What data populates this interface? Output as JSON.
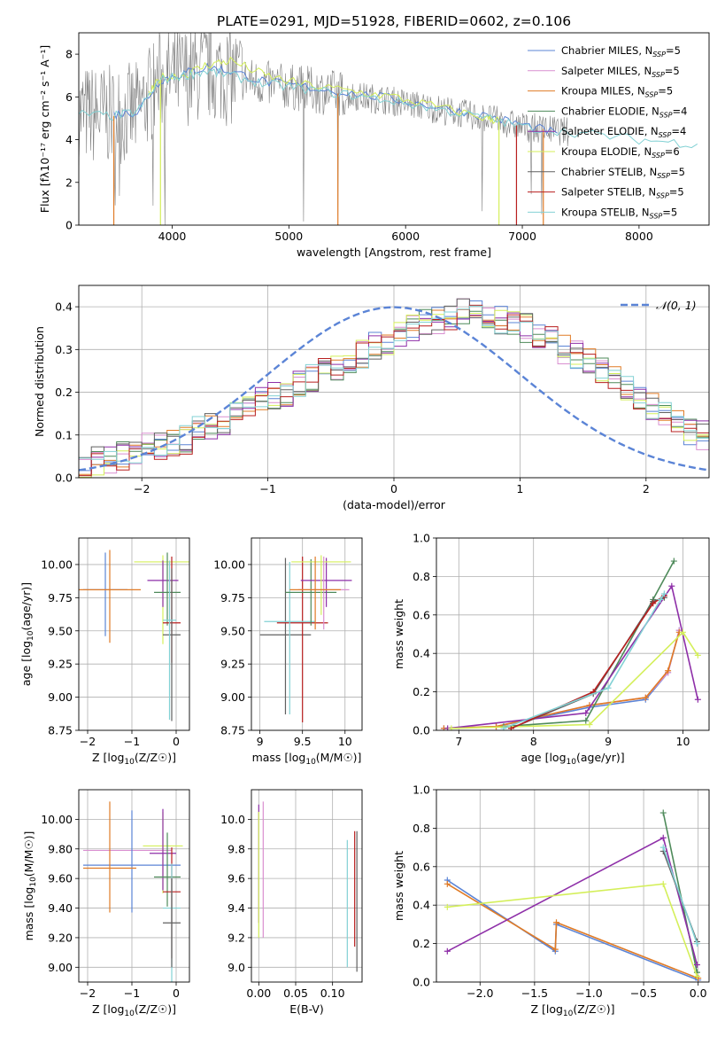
{
  "page_title": "PLATE=0291, MJD=51928, FIBERID=0602, z=0.106",
  "colors": {
    "Chabrier MILES": "#5b84d6",
    "Salpeter MILES": "#d98fd0",
    "Kroupa MILES": "#e07b26",
    "Chabrier ELODIE": "#4e8a5a",
    "Salpeter ELODIE": "#8e2fa8",
    "Kroupa ELODIE": "#d4ef5a",
    "Chabrier STELIB": "#606060",
    "Salpeter STELIB": "#b81f1f",
    "Kroupa STELIB": "#82d1d4",
    "noise": "#808080",
    "gaussian": "#5b84d6"
  },
  "chart_data": [
    {
      "id": "spectrum",
      "type": "line",
      "title": "PLATE=0291, MJD=51928, FIBERID=0602, z=0.106",
      "xlabel": "wavelength [Angstrom, rest frame]",
      "ylabel": "Flux [fλ10⁻¹⁷ erg cm⁻² s⁻¹ A⁻¹]",
      "xlim": [
        3200,
        8600
      ],
      "ylim": [
        0,
        9
      ],
      "xticks": [
        4000,
        5000,
        6000,
        7000,
        8000
      ],
      "yticks": [
        0,
        2,
        4,
        6,
        8
      ],
      "grid": false,
      "legend_position": "top-right",
      "legend": [
        {
          "prefix": "Chabrier MILES, N",
          "sub": "SSP",
          "suffix": "=5"
        },
        {
          "prefix": "Salpeter MILES, N",
          "sub": "SSP",
          "suffix": "=5"
        },
        {
          "prefix": "Kroupa MILES, N",
          "sub": "SSP",
          "suffix": "=5"
        },
        {
          "prefix": "Chabrier ELODIE, N",
          "sub": "SSP",
          "suffix": "=4"
        },
        {
          "prefix": "Salpeter ELODIE, N",
          "sub": "SSP",
          "suffix": "=4"
        },
        {
          "prefix": "Kroupa ELODIE, N",
          "sub": "SSP",
          "suffix": "=6"
        },
        {
          "prefix": "Chabrier STELIB, N",
          "sub": "SSP",
          "suffix": "=5"
        },
        {
          "prefix": "Salpeter STELIB, N",
          "sub": "SSP",
          "suffix": "=5"
        },
        {
          "prefix": "Kroupa STELIB, N",
          "sub": "SSP",
          "suffix": "=5"
        }
      ],
      "series": [
        {
          "name": "Chabrier MILES",
          "x": [
            3500,
            3700,
            3900,
            4100,
            4300,
            4500,
            4800,
            5100,
            5500,
            5900,
            6300,
            6700,
            7000,
            7300
          ],
          "y": [
            5.2,
            5.3,
            6.8,
            7.1,
            7.4,
            7.2,
            6.7,
            6.5,
            6.2,
            5.9,
            5.5,
            5.1,
            4.7,
            4.3
          ]
        },
        {
          "name": "Kroupa ELODIE",
          "x": [
            3800,
            3900,
            4100,
            4300,
            4500,
            4800,
            5100,
            5500,
            5900,
            6300,
            6700,
            6800
          ],
          "y": [
            6.1,
            6.9,
            7.0,
            7.5,
            7.7,
            7.0,
            6.6,
            6.3,
            6.0,
            5.5,
            5.0,
            4.9
          ]
        },
        {
          "name": "Kroupa STELIB",
          "x": [
            3200,
            3500,
            3700,
            3900,
            4100,
            4300,
            4500,
            4800,
            5100,
            5500,
            5900,
            6300,
            6700,
            7000,
            7500,
            8000,
            8500
          ],
          "y": [
            5.2,
            5.1,
            5.3,
            6.8,
            7.0,
            7.2,
            7.0,
            6.6,
            6.4,
            6.1,
            5.8,
            5.4,
            5.0,
            4.6,
            4.3,
            4.0,
            3.8
          ]
        }
      ],
      "dropouts": [
        {
          "name": "Kroupa MILES",
          "x": [
            3500,
            5420,
            7180
          ]
        },
        {
          "name": "Kroupa ELODIE",
          "x": [
            3900,
            6800
          ]
        },
        {
          "name": "Salpeter STELIB",
          "x": [
            6950
          ]
        }
      ]
    },
    {
      "id": "residuals",
      "type": "histogram",
      "xlabel": "(data-model)/error",
      "ylabel": "Normed distribution",
      "xlim": [
        -2.5,
        2.5
      ],
      "ylim": [
        0,
        0.45
      ],
      "xticks": [
        -2,
        -1,
        0,
        1,
        2
      ],
      "yticks": [
        0.0,
        0.1,
        0.2,
        0.3,
        0.4
      ],
      "grid": true,
      "legend_position": "top-right",
      "bin_width": 0.1,
      "gaussian": {
        "label": "𝒩(0, 1)",
        "mean": 0,
        "sigma": 1
      },
      "reference_bins": [
        0.03,
        0.04,
        0.04,
        0.05,
        0.05,
        0.07,
        0.07,
        0.08,
        0.09,
        0.11,
        0.12,
        0.13,
        0.15,
        0.16,
        0.18,
        0.19,
        0.2,
        0.22,
        0.23,
        0.25,
        0.26,
        0.28,
        0.29,
        0.31,
        0.32,
        0.34,
        0.35,
        0.36,
        0.37,
        0.38,
        0.39,
        0.39,
        0.38,
        0.37,
        0.36,
        0.35,
        0.33,
        0.32,
        0.3,
        0.29,
        0.27,
        0.25,
        0.23,
        0.21,
        0.19,
        0.17,
        0.15,
        0.13,
        0.11,
        0.1
      ],
      "series": [
        "Chabrier MILES",
        "Salpeter MILES",
        "Kroupa MILES",
        "Chabrier ELODIE",
        "Salpeter ELODIE",
        "Kroupa ELODIE",
        "Chabrier STELIB",
        "Salpeter STELIB",
        "Kroupa STELIB"
      ]
    },
    {
      "id": "age-vs-Z",
      "type": "errorbar",
      "xlabel_main": "Z [log",
      "xlabel_sub": "10",
      "xlabel_rest": "(Z/Z☉)]",
      "ylabel_main": "age  [log",
      "ylabel_sub": "10",
      "ylabel_rest": "(age/yr)]",
      "xlim": [
        -2.2,
        0.3
      ],
      "ylim": [
        8.75,
        10.2
      ],
      "xticks": [
        -2,
        -1,
        0
      ],
      "yticks": [
        8.75,
        9.0,
        9.25,
        9.5,
        9.75,
        10.0
      ],
      "grid": true,
      "points": [
        {
          "name": "Chabrier MILES",
          "x": -1.6,
          "xerr": 0.5,
          "y": 9.81,
          "yerr": [
            0.35,
            0.28
          ]
        },
        {
          "name": "Kroupa MILES",
          "x": -1.5,
          "xerr": 0.7,
          "y": 9.81,
          "yerr": [
            0.4,
            0.3
          ]
        },
        {
          "name": "Kroupa ELODIE",
          "x": -0.3,
          "xerr": 0.65,
          "y": 10.02,
          "yerr": [
            0.62,
            0.05
          ]
        },
        {
          "name": "Salpeter ELODIE",
          "x": -0.3,
          "xerr": 0.35,
          "y": 9.88,
          "yerr": [
            0.2,
            0.15
          ]
        },
        {
          "name": "Chabrier ELODIE",
          "x": -0.2,
          "xerr": 0.3,
          "y": 9.79,
          "yerr": [
            0.25,
            0.3
          ]
        },
        {
          "name": "Salpeter STELIB",
          "x": -0.1,
          "xerr": 0.2,
          "y": 9.56,
          "yerr": [
            0.3,
            0.5
          ]
        },
        {
          "name": "Chabrier STELIB",
          "x": -0.1,
          "xerr": 0.2,
          "y": 9.47,
          "yerr": [
            0.65,
            0.5
          ]
        },
        {
          "name": "Kroupa STELIB",
          "x": -0.15,
          "xerr": 0.15,
          "y": 9.58,
          "yerr": [
            0.75,
            0.45
          ]
        }
      ]
    },
    {
      "id": "age-vs-mass",
      "type": "errorbar",
      "xlabel_main": "mass [log",
      "xlabel_sub": "10",
      "xlabel_rest": "(M/M☉)]",
      "xlim": [
        8.9,
        10.2
      ],
      "ylim": [
        8.75,
        10.2
      ],
      "xticks": [
        9.0,
        9.5,
        10.0
      ],
      "yticks": [
        8.75,
        9.0,
        9.25,
        9.5,
        9.75,
        10.0
      ],
      "grid": true,
      "points": [
        {
          "name": "Chabrier STELIB",
          "x": 9.3,
          "xerr": 0.3,
          "y": 9.47,
          "yerr": [
            0.6,
            0.58
          ]
        },
        {
          "name": "Salpeter STELIB",
          "x": 9.5,
          "xerr": 0.3,
          "y": 9.56,
          "yerr": [
            0.75,
            0.5
          ]
        },
        {
          "name": "Kroupa STELIB",
          "x": 9.35,
          "xerr": 0.3,
          "y": 9.57,
          "yerr": [
            0.7,
            0.45
          ]
        },
        {
          "name": "Chabrier ELODIE",
          "x": 9.6,
          "xerr": 0.3,
          "y": 9.79,
          "yerr": [
            0.25,
            0.25
          ]
        },
        {
          "name": "Salpeter ELODIE",
          "x": 9.78,
          "xerr": 0.3,
          "y": 9.88,
          "yerr": [
            0.2,
            0.17
          ]
        },
        {
          "name": "Kroupa ELODIE",
          "x": 9.72,
          "xerr": 0.35,
          "y": 10.02,
          "yerr": [
            0.4,
            0.05
          ]
        },
        {
          "name": "Salpeter MILES",
          "x": 9.75,
          "xerr": 0.3,
          "y": 9.81,
          "yerr": [
            0.3,
            0.25
          ]
        },
        {
          "name": "Kroupa MILES",
          "x": 9.65,
          "xerr": 0.3,
          "y": 9.81,
          "yerr": [
            0.3,
            0.25
          ]
        }
      ]
    },
    {
      "id": "weight-vs-age",
      "type": "line",
      "xlabel_main": "age  [log",
      "xlabel_sub": "10",
      "xlabel_rest": "(age/yr)]",
      "ylabel": "mass weight",
      "xlim": [
        6.7,
        10.35
      ],
      "ylim": [
        0,
        1.0
      ],
      "xticks": [
        7,
        8,
        9,
        10
      ],
      "yticks": [
        0.0,
        0.2,
        0.4,
        0.6,
        0.8,
        1.0
      ],
      "grid": true,
      "series": [
        {
          "name": "Chabrier MILES",
          "x": [
            6.8,
            7.5,
            8.75,
            9.5,
            9.8,
            9.95
          ],
          "y": [
            0.01,
            0.02,
            0.12,
            0.16,
            0.3,
            0.52
          ]
        },
        {
          "name": "Salpeter MILES",
          "x": [
            6.8,
            7.5,
            8.75,
            9.5,
            9.8,
            9.95
          ],
          "y": [
            0.01,
            0.02,
            0.13,
            0.17,
            0.3,
            0.52
          ]
        },
        {
          "name": "Kroupa MILES",
          "x": [
            6.8,
            7.5,
            8.75,
            9.5,
            9.8,
            9.95
          ],
          "y": [
            0.01,
            0.02,
            0.13,
            0.17,
            0.31,
            0.51
          ]
        },
        {
          "name": "Chabrier ELODIE",
          "x": [
            7.6,
            8.7,
            9.6,
            9.88
          ],
          "y": [
            0.02,
            0.05,
            0.68,
            0.88
          ]
        },
        {
          "name": "Salpeter ELODIE",
          "x": [
            6.85,
            8.7,
            9.85,
            10.2
          ],
          "y": [
            0.01,
            0.09,
            0.75,
            0.16
          ]
        },
        {
          "name": "Kroupa ELODIE",
          "x": [
            6.9,
            8.75,
            10.0,
            10.2
          ],
          "y": [
            0.01,
            0.03,
            0.51,
            0.39
          ]
        },
        {
          "name": "Chabrier STELIB",
          "x": [
            7.7,
            8.8,
            9.6,
            9.75
          ],
          "y": [
            0.01,
            0.19,
            0.67,
            0.69
          ]
        },
        {
          "name": "Salpeter STELIB",
          "x": [
            7.7,
            8.8,
            9.6,
            9.75
          ],
          "y": [
            0.01,
            0.2,
            0.66,
            0.7
          ]
        },
        {
          "name": "Kroupa STELIB",
          "x": [
            7.6,
            9.0,
            9.7,
            9.75
          ],
          "y": [
            0.01,
            0.22,
            0.68,
            0.71
          ]
        }
      ]
    },
    {
      "id": "mass-vs-Z",
      "type": "errorbar",
      "xlabel_main": "Z [log",
      "xlabel_sub": "10",
      "xlabel_rest": "(Z/Z☉)]",
      "ylabel_main": "mass [log",
      "ylabel_sub": "10",
      "ylabel_rest": "(M/M☉)]",
      "xlim": [
        -2.2,
        0.3
      ],
      "ylim": [
        8.9,
        10.2
      ],
      "xticks": [
        -2,
        -1,
        0
      ],
      "yticks": [
        9.0,
        9.2,
        9.4,
        9.6,
        9.8,
        10.0
      ],
      "grid": true,
      "points": [
        {
          "name": "Salpeter MILES",
          "x": -1.1,
          "xerr": 1.0,
          "y": 9.79,
          "yerr": [
            0.0,
            0.0
          ]
        },
        {
          "name": "Chabrier MILES",
          "x": -1.0,
          "xerr": 1.1,
          "y": 9.69,
          "yerr": [
            0.32,
            0.37
          ]
        },
        {
          "name": "Kroupa MILES",
          "x": -1.5,
          "xerr": 0.6,
          "y": 9.67,
          "yerr": [
            0.3,
            0.45
          ]
        },
        {
          "name": "Kroupa ELODIE",
          "x": -0.3,
          "xerr": 0.45,
          "y": 9.82,
          "yerr": [
            0.32,
            0.23
          ]
        },
        {
          "name": "Salpeter ELODIE",
          "x": -0.3,
          "xerr": 0.3,
          "y": 9.77,
          "yerr": [
            0.25,
            0.3
          ]
        },
        {
          "name": "Chabrier ELODIE",
          "x": -0.2,
          "xerr": 0.3,
          "y": 9.61,
          "yerr": [
            0.2,
            0.3
          ]
        },
        {
          "name": "Salpeter STELIB",
          "x": -0.1,
          "xerr": 0.2,
          "y": 9.51,
          "yerr": [
            0.45,
            0.3
          ]
        },
        {
          "name": "Kroupa STELIB",
          "x": -0.1,
          "xerr": 0.2,
          "y": 9.4,
          "yerr": [
            0.5,
            0.3
          ]
        },
        {
          "name": "Chabrier STELIB",
          "x": -0.1,
          "xerr": 0.2,
          "y": 9.3,
          "yerr": [
            0.3,
            0.3
          ]
        }
      ]
    },
    {
      "id": "mass-vs-EBV",
      "type": "errorbar",
      "xlabel": "E(B-V)",
      "xlim": [
        -0.01,
        0.14
      ],
      "ylim": [
        8.9,
        10.2
      ],
      "xticks": [
        0.0,
        0.05,
        0.1
      ],
      "ytick_labels": [
        "9.0",
        "9.2",
        "9.4",
        "9.6",
        "9.8",
        "10.0"
      ],
      "yticks": [
        9.0,
        9.2,
        9.4,
        9.6,
        9.8,
        10.0
      ],
      "xtick_labels": [
        "0.00",
        "0.05",
        "0.10"
      ],
      "grid": true,
      "points": [
        {
          "name": "Salpeter ELODIE",
          "x": 0.0,
          "y": 9.7,
          "yerr": [
            0.4,
            0.4
          ]
        },
        {
          "name": "Kroupa ELODIE",
          "x": 0.0,
          "y": 9.6,
          "yerr": [
            0.4,
            0.45
          ]
        },
        {
          "name": "Salpeter MILES",
          "x": 0.006,
          "y": 9.7,
          "yerr": [
            0.5,
            0.42
          ]
        },
        {
          "name": "Kroupa STELIB",
          "x": 0.12,
          "y": 9.4,
          "yerr": [
            0.4,
            0.46
          ]
        },
        {
          "name": "Salpeter STELIB",
          "x": 0.13,
          "y": 9.5,
          "yerr": [
            0.36,
            0.42
          ]
        },
        {
          "name": "Chabrier STELIB",
          "x": 0.133,
          "y": 9.45,
          "yerr": [
            0.48,
            0.47
          ]
        }
      ]
    },
    {
      "id": "weight-vs-Z",
      "type": "line",
      "xlabel_main": "Z [log",
      "xlabel_sub": "10",
      "xlabel_rest": "(Z/Z☉)]",
      "ylabel": "mass weight",
      "xlim": [
        -2.4,
        0.1
      ],
      "ylim": [
        0,
        1.0
      ],
      "xticks": [
        -2.0,
        -1.5,
        -1.0,
        -0.5,
        0.0
      ],
      "xtick_labels": [
        "−2.0",
        "−1.5",
        "−1.0",
        "−0.5",
        "0.0"
      ],
      "yticks": [
        0.0,
        0.2,
        0.4,
        0.6,
        0.8,
        1.0
      ],
      "grid": true,
      "series": [
        {
          "name": "Chabrier MILES",
          "x": [
            -2.3,
            -1.31,
            -1.3,
            0.0
          ],
          "y": [
            0.53,
            0.16,
            0.3,
            0.01
          ]
        },
        {
          "name": "Kroupa MILES",
          "x": [
            -2.3,
            -1.31,
            -1.3,
            0.0
          ],
          "y": [
            0.51,
            0.17,
            0.31,
            0.02
          ]
        },
        {
          "name": "Chabrier ELODIE",
          "x": [
            -0.32,
            -0.01
          ],
          "y": [
            0.88,
            0.05
          ]
        },
        {
          "name": "Salpeter ELODIE",
          "x": [
            -2.3,
            -0.32,
            -0.01
          ],
          "y": [
            0.16,
            0.75,
            0.09
          ]
        },
        {
          "name": "Kroupa ELODIE",
          "x": [
            -2.3,
            -0.32,
            -0.01
          ],
          "y": [
            0.39,
            0.51,
            0.03
          ]
        },
        {
          "name": "Chabrier STELIB",
          "x": [
            -0.32,
            -0.01
          ],
          "y": [
            0.68,
            0.21
          ]
        },
        {
          "name": "Kroupa STELIB",
          "x": [
            -0.32,
            -0.01
          ],
          "y": [
            0.7,
            0.2
          ]
        }
      ]
    }
  ]
}
